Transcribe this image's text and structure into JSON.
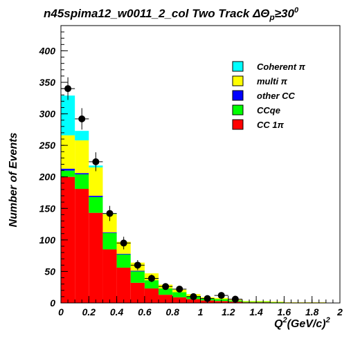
{
  "chart_data": {
    "type": "bar",
    "stacked": true,
    "title": "n45spima12_w0011_2_col Two Track ΔΘp≥30°",
    "title_parts": {
      "main": "n45spima12_w0011_2_col Two Track ",
      "delta": "ΔΘ",
      "sub": "p",
      "cond": "≥30",
      "sup": "0"
    },
    "xlabel": "Q²(GeV/c)²",
    "xlabel_parts": {
      "q": "Q",
      "sup1": "2",
      "unit": "(GeV/c)",
      "sup2": "2"
    },
    "ylabel": "Number of Events",
    "xlim": [
      0,
      2
    ],
    "ylim": [
      0,
      440
    ],
    "bin_width": 0.1,
    "x_ticks": [
      "0",
      "0.2",
      "0.4",
      "0.6",
      "0.8",
      "1",
      "1.2",
      "1.4",
      "1.6",
      "1.8",
      "2"
    ],
    "y_ticks": [
      "0",
      "50",
      "100",
      "150",
      "200",
      "250",
      "300",
      "350",
      "400"
    ],
    "bin_centers": [
      0.05,
      0.15,
      0.25,
      0.35,
      0.45,
      0.55,
      0.65,
      0.75,
      0.85,
      0.95,
      1.05,
      1.15,
      1.25,
      1.35,
      1.45,
      1.55,
      1.65,
      1.75,
      1.85,
      1.95
    ],
    "legend_position": "top-right",
    "series": [
      {
        "name": "CC 1π",
        "color": "#ff0000",
        "values": [
          200,
          181,
          143,
          85,
          56,
          32,
          23,
          13,
          9,
          6,
          4,
          3,
          2,
          1,
          1,
          0,
          0,
          0,
          0,
          0
        ]
      },
      {
        "name": "CCqe",
        "color": "#00ff00",
        "values": [
          10,
          23,
          25,
          26,
          21,
          18,
          13,
          10,
          8,
          5,
          3,
          3,
          2,
          1,
          1,
          1,
          0,
          0,
          0,
          0
        ]
      },
      {
        "name": "other CC",
        "color": "#0000ff",
        "values": [
          3,
          2,
          2,
          1,
          1,
          1,
          0,
          0,
          0,
          0,
          0,
          0,
          0,
          0,
          0,
          0,
          0,
          0,
          0,
          0
        ]
      },
      {
        "name": "multi π",
        "color": "#ffff00",
        "values": [
          53,
          52,
          45,
          29,
          19,
          13,
          11,
          6,
          4,
          3,
          2,
          2,
          1,
          1,
          1,
          1,
          1,
          1,
          1,
          0
        ]
      },
      {
        "name": "Coherent π",
        "color": "#00ffff",
        "values": [
          63,
          15,
          3,
          1,
          0,
          0,
          0,
          0,
          0,
          0,
          0,
          0,
          0,
          0,
          0,
          0,
          0,
          0,
          0,
          0
        ]
      }
    ],
    "legend_order": [
      "Coherent π",
      "multi π",
      "other CC",
      "CCqe",
      "CC 1π"
    ],
    "data_points": {
      "x": [
        0.05,
        0.15,
        0.25,
        0.35,
        0.45,
        0.55,
        0.65,
        0.75,
        0.85,
        0.95,
        1.05,
        1.15,
        1.25
      ],
      "y": [
        340,
        292,
        224,
        142,
        95,
        60,
        39,
        26,
        22,
        10,
        7,
        12,
        6
      ],
      "err": [
        18,
        17,
        15,
        12,
        10,
        8,
        6,
        5,
        5,
        3,
        3,
        3,
        2
      ]
    }
  }
}
